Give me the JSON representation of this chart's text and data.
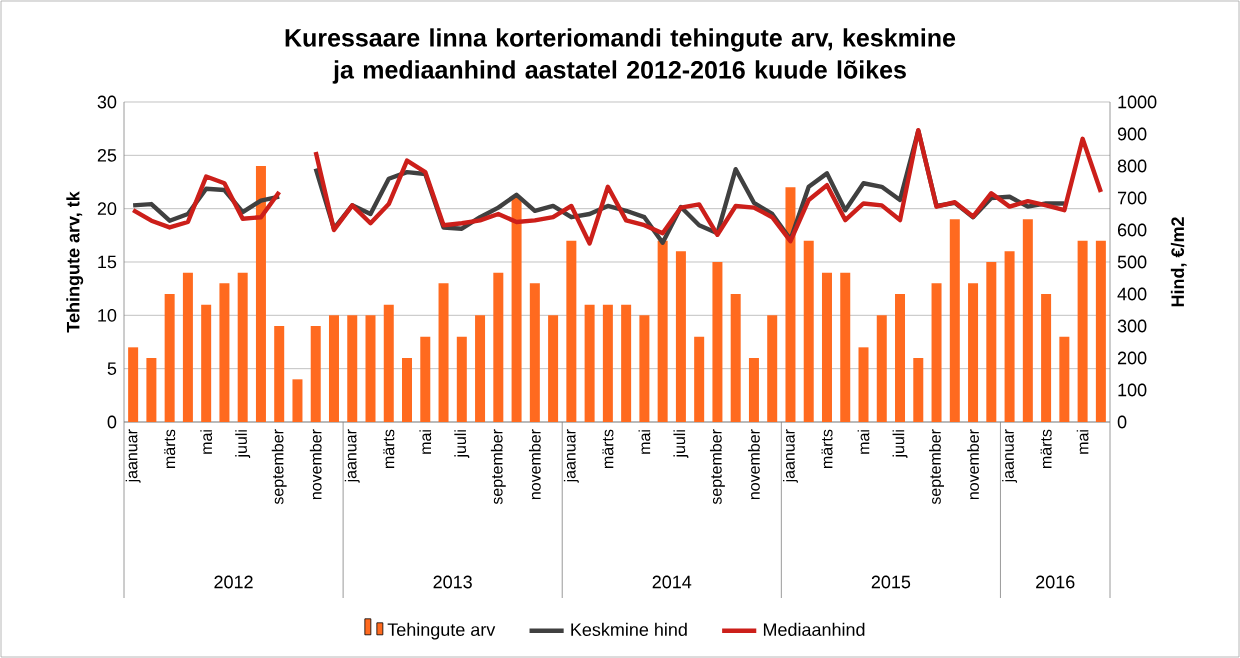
{
  "chart_data": {
    "type": "bar",
    "title": "Kuressaare linna korteriomandi tehingute arv, keskmine ja mediaanhind aastatel  2012-2016 kuude lõikes",
    "ylabel": "Tehingute arv, tk",
    "y2label": "Hind, €/m2",
    "categories": [
      "jaanuar",
      null,
      "märts",
      null,
      "mai",
      null,
      "juuli",
      null,
      "september",
      null,
      "november",
      null,
      "jaanuar",
      null,
      "märts",
      null,
      "mai",
      null,
      "juuli",
      null,
      "september",
      null,
      "november",
      null,
      "jaanuar",
      null,
      "märts",
      null,
      "mai",
      null,
      "juuli",
      null,
      "september",
      null,
      "november",
      null,
      "jaanuar",
      null,
      "märts",
      null,
      "mai",
      null,
      "juuli",
      null,
      "september",
      null,
      "november",
      null,
      "jaanuar",
      null,
      "märts",
      null,
      "mai",
      null
    ],
    "annotations": [
      "2012",
      "2013",
      "2014",
      "2015",
      "2016"
    ],
    "series": [
      {
        "name": "Tehingute arv",
        "color": "#ff6a1f",
        "values": [
          7,
          6,
          12,
          14,
          11,
          13,
          14,
          24,
          9,
          4,
          9,
          10,
          10,
          10,
          11,
          6,
          8,
          13,
          8,
          10,
          14,
          21,
          13,
          10,
          17,
          11,
          11,
          11,
          10,
          17,
          16,
          8,
          15,
          12,
          6,
          10,
          22,
          17,
          14,
          14,
          7,
          10,
          12,
          6,
          13,
          19,
          13,
          15,
          16,
          19,
          12,
          8,
          17,
          17
        ]
      },
      {
        "name": "Keskmine hind",
        "type": "line",
        "axis": "y2",
        "color": "#404040",
        "values": [
          677,
          681,
          629,
          650,
          729,
          725,
          656,
          692,
          704,
          null,
          792,
          604,
          677,
          650,
          760,
          781,
          775,
          608,
          604,
          640,
          670,
          710,
          660,
          675,
          640,
          650,
          675,
          660,
          640,
          560,
          672,
          615,
          590,
          790,
          685,
          650,
          570,
          735,
          777,
          662,
          746,
          735,
          694,
          910,
          675,
          685,
          640,
          700,
          704,
          673,
          683,
          683,
          null,
          null
        ]
      },
      {
        "name": "Mediaanhind",
        "type": "line",
        "axis": "y2",
        "color": "#cc1f1a",
        "values": [
          662,
          629,
          608,
          625,
          767,
          746,
          635,
          640,
          719,
          null,
          844,
          600,
          677,
          621,
          681,
          817,
          781,
          615,
          621,
          630,
          650,
          625,
          630,
          640,
          675,
          558,
          735,
          630,
          615,
          590,
          670,
          680,
          585,
          675,
          670,
          640,
          565,
          694,
          740,
          631,
          683,
          677,
          631,
          912,
          673,
          687,
          642,
          715,
          673,
          690,
          677,
          662,
          885,
          719
        ]
      }
    ],
    "ylim": [
      0,
      30
    ],
    "yticks": [
      0,
      5,
      10,
      15,
      20,
      25,
      30
    ],
    "y2lim": [
      0,
      1000
    ],
    "y2ticks": [
      0,
      100,
      200,
      300,
      400,
      500,
      600,
      700,
      800,
      900,
      1000
    ],
    "grid": "y",
    "legend": "bottom"
  }
}
